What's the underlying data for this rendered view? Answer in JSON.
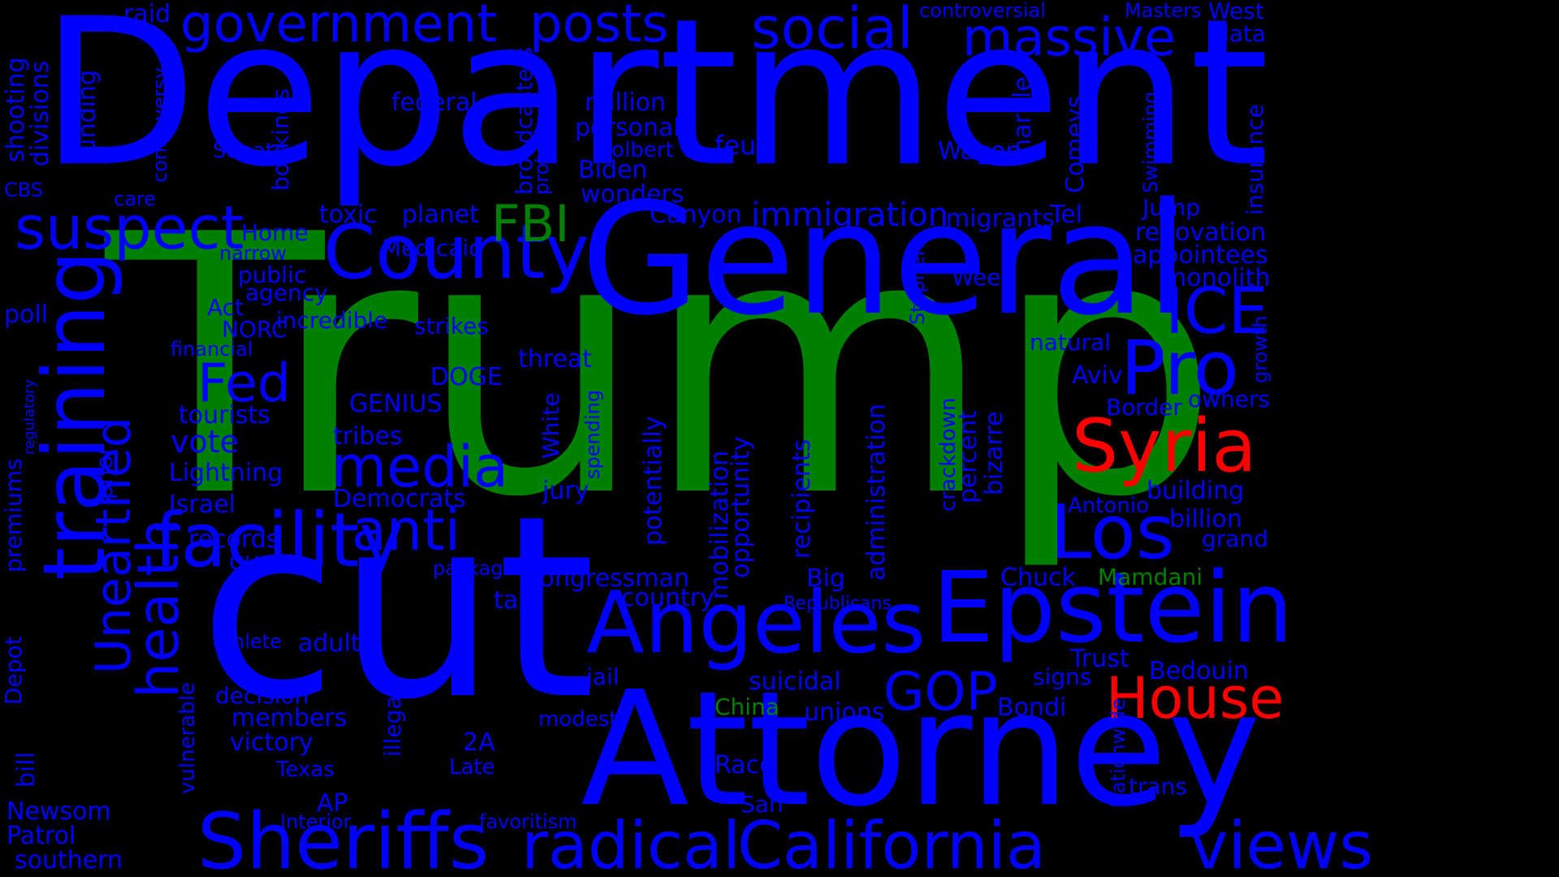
{
  "colors": {
    "background": "#000000",
    "blue": "#0000ff",
    "green": "#008000",
    "red": "#ff0000"
  },
  "words": {
    "trump": "Trump",
    "department": "Department",
    "cut": "cut",
    "general": "General",
    "attorney": "Attorney",
    "epstein": "Epstein",
    "angeles": "Angeles",
    "county": "County",
    "facility": "facility",
    "sheriffs": "Sheriffs",
    "california": "California",
    "radical": "radical",
    "views": "views",
    "training": "training",
    "unearthed": "Unearthed",
    "health": "health",
    "suspect": "suspect",
    "government": "government",
    "posts": "posts",
    "social": "social",
    "massive": "massive",
    "media": "media",
    "anti": "anti",
    "los": "Los",
    "syria": "Syria",
    "house": "House",
    "ice": "ICE",
    "pro": "Pro",
    "fed": "Fed",
    "gop": "GOP",
    "fbi": "FBI",
    "immigration": "immigration",
    "vote": "vote",
    "raid": "raid",
    "shooting": "shooting",
    "divisions": "divisions",
    "funding": "funding",
    "controversy": "controversy",
    "bookings": "bookings",
    "broadcasters": "broadcasters",
    "protests": "protests",
    "federal": "federal",
    "million": "million",
    "personal": "personal",
    "colbert": "Colbert",
    "biden": "Biden",
    "wonders": "wonders",
    "feud": "feud",
    "wagon": "Wagon",
    "marble": "marble",
    "comeys": "Comeys",
    "swimming": "Swimming",
    "insurance": "insurance",
    "controversial": "controversial",
    "masters": "Masters",
    "west": "West",
    "data": "data",
    "senate": "Senate",
    "cbs": "CBS",
    "care": "care",
    "toxic": "toxic",
    "planet": "planet",
    "canyon": "Canyon",
    "migrants": "migrants",
    "tel": "Tel",
    "jump": "Jump",
    "renovation": "renovation",
    "appointees": "appointees",
    "home": "Home",
    "narrow": "narrow",
    "medicaid": "Medicaid",
    "stephen": "Stephen",
    "week": "Week",
    "monolith": "monolith",
    "growth": "growth",
    "public": "public",
    "agency": "agency",
    "act": "Act",
    "norc": "NORC",
    "incredible": "incredible",
    "strikes": "strikes",
    "poll": "poll",
    "financial": "financial",
    "threat": "threat",
    "natural": "natural",
    "aviv": "Aviv",
    "owners": "owners",
    "border": "Border",
    "dodge": "DOGE",
    "regulatory": "regulatory",
    "tourists": "tourists",
    "genius": "GENIUS",
    "white": "White",
    "spending": "spending",
    "potentially": "potentially",
    "mobilization": "mobilization",
    "opportunity": "opportunity",
    "recipients": "recipients",
    "administration": "administration",
    "crackdown": "crackdown",
    "percent": "percent",
    "bizarre": "bizarre",
    "premiums": "premiums",
    "prior": "prior",
    "tribes": "tribes",
    "lightning": "Lightning",
    "democrats": "Democrats",
    "israel": "Israel",
    "jury": "jury",
    "building": "building",
    "antonio": "Antonio",
    "billion": "billion",
    "grand": "grand",
    "records": "records",
    "gun": "gun",
    "package": "package",
    "congressman": "congressman",
    "country": "country",
    "tax": "tax",
    "big": "Big",
    "chuck": "Chuck",
    "mamdani": "Mamdani",
    "republicans": "Republicans",
    "depot": "Depot",
    "athlete": "athlete",
    "adults": "adults",
    "vulnerable": "vulnerable",
    "illegal": "illegal",
    "jail": "jail",
    "suicidal": "suicidal",
    "trust": "Trust",
    "signs": "signs",
    "bedouin": "Bedouin",
    "decision": "decision",
    "members": "members",
    "china": "China",
    "unions": "unions",
    "bondi": "Bondi",
    "modest": "modest",
    "nationwide": "Nationwide",
    "victory": "victory",
    "two_a": "2A",
    "bill": "bill",
    "late": "Late",
    "race": "Race",
    "texas": "Texas",
    "ap": "AP",
    "san": "San",
    "trans": "trans",
    "newsom": "Newsom",
    "interior": "Interior",
    "favoritism": "favoritism",
    "patrol": "Patrol",
    "southern": "southern"
  }
}
